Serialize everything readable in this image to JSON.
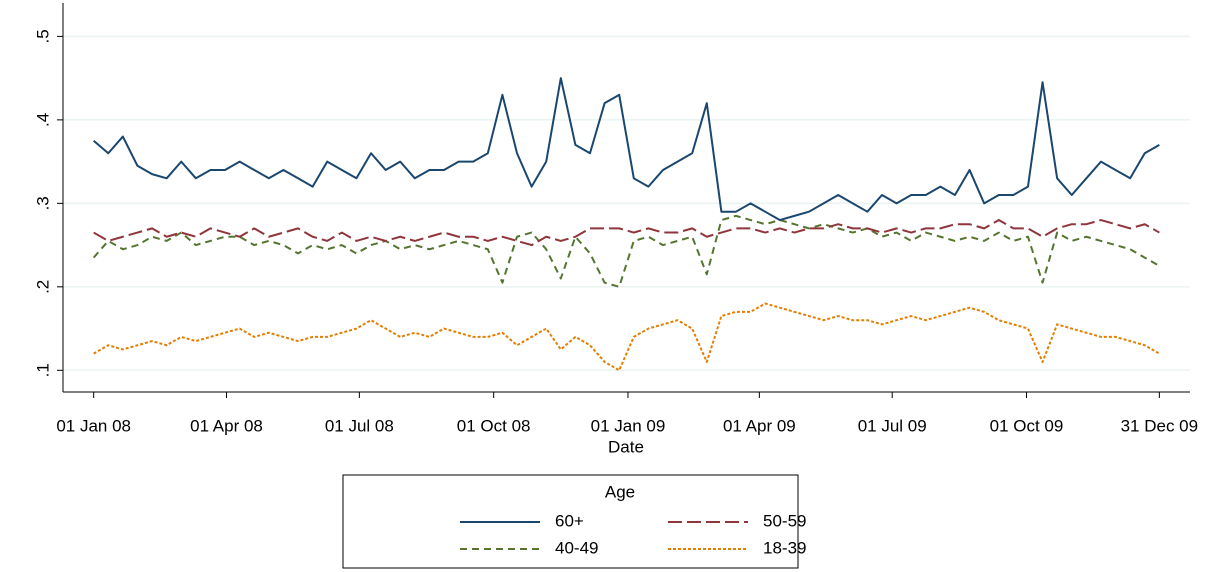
{
  "chart_data": {
    "type": "line",
    "x_label": "Date",
    "legend_title": "Age",
    "legend": "bottom",
    "grid": true,
    "x": [
      "2008-01-01",
      "2008-01-11",
      "2008-01-21",
      "2008-01-31",
      "2008-02-10",
      "2008-02-20",
      "2008-03-01",
      "2008-03-11",
      "2008-03-21",
      "2008-03-31",
      "2008-04-10",
      "2008-04-20",
      "2008-04-30",
      "2008-05-10",
      "2008-05-20",
      "2008-05-30",
      "2008-06-09",
      "2008-06-19",
      "2008-06-29",
      "2008-07-09",
      "2008-07-19",
      "2008-07-29",
      "2008-08-08",
      "2008-08-18",
      "2008-08-28",
      "2008-09-07",
      "2008-09-17",
      "2008-09-27",
      "2008-10-07",
      "2008-10-17",
      "2008-10-27",
      "2008-11-06",
      "2008-11-16",
      "2008-11-26",
      "2008-12-06",
      "2008-12-16",
      "2008-12-26",
      "2009-01-05",
      "2009-01-15",
      "2009-01-25",
      "2009-02-04",
      "2009-02-14",
      "2009-02-24",
      "2009-03-06",
      "2009-03-16",
      "2009-03-26",
      "2009-04-05",
      "2009-04-15",
      "2009-04-25",
      "2009-05-05",
      "2009-05-15",
      "2009-05-25",
      "2009-06-04",
      "2009-06-14",
      "2009-06-24",
      "2009-07-04",
      "2009-07-14",
      "2009-07-24",
      "2009-08-03",
      "2009-08-13",
      "2009-08-23",
      "2009-09-02",
      "2009-09-12",
      "2009-09-22",
      "2009-10-02",
      "2009-10-12",
      "2009-10-22",
      "2009-11-01",
      "2009-11-11",
      "2009-11-21",
      "2009-12-01",
      "2009-12-11",
      "2009-12-21",
      "2009-12-31"
    ],
    "xlim": [
      "2007-12-11",
      "2010-01-21"
    ],
    "xticks": [
      {
        "value": "2008-01-01",
        "label": "01 Jan 08"
      },
      {
        "value": "2008-04-01",
        "label": "01 Apr 08"
      },
      {
        "value": "2008-07-01",
        "label": "01 Jul 08"
      },
      {
        "value": "2008-10-01",
        "label": "01 Oct 08"
      },
      {
        "value": "2009-01-01",
        "label": "01 Jan 09"
      },
      {
        "value": "2009-04-01",
        "label": "01 Apr 09"
      },
      {
        "value": "2009-07-01",
        "label": "01 Jul 09"
      },
      {
        "value": "2009-10-01",
        "label": "01 Oct 09"
      },
      {
        "value": "2009-12-31",
        "label": "31 Dec 09"
      }
    ],
    "ylim": [
      0.074,
      0.54
    ],
    "yticks": [
      {
        "value": 0.1,
        "label": ".1"
      },
      {
        "value": 0.2,
        "label": ".2"
      },
      {
        "value": 0.3,
        "label": ".3"
      },
      {
        "value": 0.4,
        "label": ".4"
      },
      {
        "value": 0.5,
        "label": ".5"
      }
    ],
    "series": [
      {
        "name": "60+",
        "color": "#1a476f",
        "dash": "solid",
        "values": [
          0.375,
          0.36,
          0.38,
          0.345,
          0.335,
          0.33,
          0.35,
          0.33,
          0.34,
          0.34,
          0.35,
          0.34,
          0.33,
          0.34,
          0.33,
          0.32,
          0.35,
          0.34,
          0.33,
          0.36,
          0.34,
          0.35,
          0.33,
          0.34,
          0.34,
          0.35,
          0.35,
          0.36,
          0.43,
          0.36,
          0.32,
          0.35,
          0.45,
          0.37,
          0.36,
          0.42,
          0.43,
          0.33,
          0.32,
          0.34,
          0.35,
          0.36,
          0.42,
          0.29,
          0.29,
          0.3,
          0.29,
          0.28,
          0.285,
          0.29,
          0.3,
          0.31,
          0.3,
          0.29,
          0.31,
          0.3,
          0.31,
          0.31,
          0.32,
          0.31,
          0.34,
          0.3,
          0.31,
          0.31,
          0.32,
          0.445,
          0.33,
          0.31,
          0.33,
          0.35,
          0.34,
          0.33,
          0.36,
          0.37
        ]
      },
      {
        "name": "50-59",
        "color": "#90353b",
        "dash": "long",
        "values": [
          0.265,
          0.255,
          0.26,
          0.265,
          0.27,
          0.26,
          0.265,
          0.26,
          0.27,
          0.265,
          0.26,
          0.27,
          0.26,
          0.265,
          0.27,
          0.26,
          0.255,
          0.265,
          0.255,
          0.26,
          0.255,
          0.26,
          0.255,
          0.26,
          0.265,
          0.26,
          0.26,
          0.255,
          0.26,
          0.255,
          0.25,
          0.26,
          0.255,
          0.26,
          0.27,
          0.27,
          0.27,
          0.265,
          0.27,
          0.265,
          0.265,
          0.27,
          0.26,
          0.265,
          0.27,
          0.27,
          0.265,
          0.27,
          0.265,
          0.27,
          0.27,
          0.275,
          0.27,
          0.27,
          0.265,
          0.27,
          0.265,
          0.27,
          0.27,
          0.275,
          0.275,
          0.27,
          0.28,
          0.27,
          0.27,
          0.26,
          0.27,
          0.275,
          0.275,
          0.28,
          0.275,
          0.27,
          0.275,
          0.265
        ]
      },
      {
        "name": "40-49",
        "color": "#55752f",
        "dash": "medium",
        "values": [
          0.235,
          0.255,
          0.245,
          0.25,
          0.26,
          0.255,
          0.265,
          0.25,
          0.255,
          0.26,
          0.26,
          0.25,
          0.255,
          0.25,
          0.24,
          0.25,
          0.245,
          0.25,
          0.24,
          0.25,
          0.255,
          0.245,
          0.25,
          0.245,
          0.25,
          0.255,
          0.25,
          0.245,
          0.205,
          0.26,
          0.265,
          0.245,
          0.21,
          0.26,
          0.24,
          0.205,
          0.2,
          0.255,
          0.26,
          0.25,
          0.255,
          0.26,
          0.215,
          0.28,
          0.285,
          0.28,
          0.275,
          0.28,
          0.275,
          0.27,
          0.275,
          0.27,
          0.265,
          0.27,
          0.26,
          0.265,
          0.255,
          0.265,
          0.26,
          0.255,
          0.26,
          0.255,
          0.265,
          0.255,
          0.26,
          0.205,
          0.265,
          0.255,
          0.26,
          0.255,
          0.25,
          0.245,
          0.235,
          0.225
        ]
      },
      {
        "name": "18-39",
        "color": "#e37e00",
        "dash": "short",
        "values": [
          0.12,
          0.13,
          0.125,
          0.13,
          0.135,
          0.13,
          0.14,
          0.135,
          0.14,
          0.145,
          0.15,
          0.14,
          0.145,
          0.14,
          0.135,
          0.14,
          0.14,
          0.145,
          0.15,
          0.16,
          0.15,
          0.14,
          0.145,
          0.14,
          0.15,
          0.145,
          0.14,
          0.14,
          0.145,
          0.13,
          0.14,
          0.15,
          0.125,
          0.14,
          0.13,
          0.11,
          0.1,
          0.14,
          0.15,
          0.155,
          0.16,
          0.15,
          0.11,
          0.165,
          0.17,
          0.17,
          0.18,
          0.175,
          0.17,
          0.165,
          0.16,
          0.165,
          0.16,
          0.16,
          0.155,
          0.16,
          0.165,
          0.16,
          0.165,
          0.17,
          0.175,
          0.17,
          0.16,
          0.155,
          0.15,
          0.11,
          0.155,
          0.15,
          0.145,
          0.14,
          0.14,
          0.135,
          0.13,
          0.12
        ]
      }
    ]
  }
}
